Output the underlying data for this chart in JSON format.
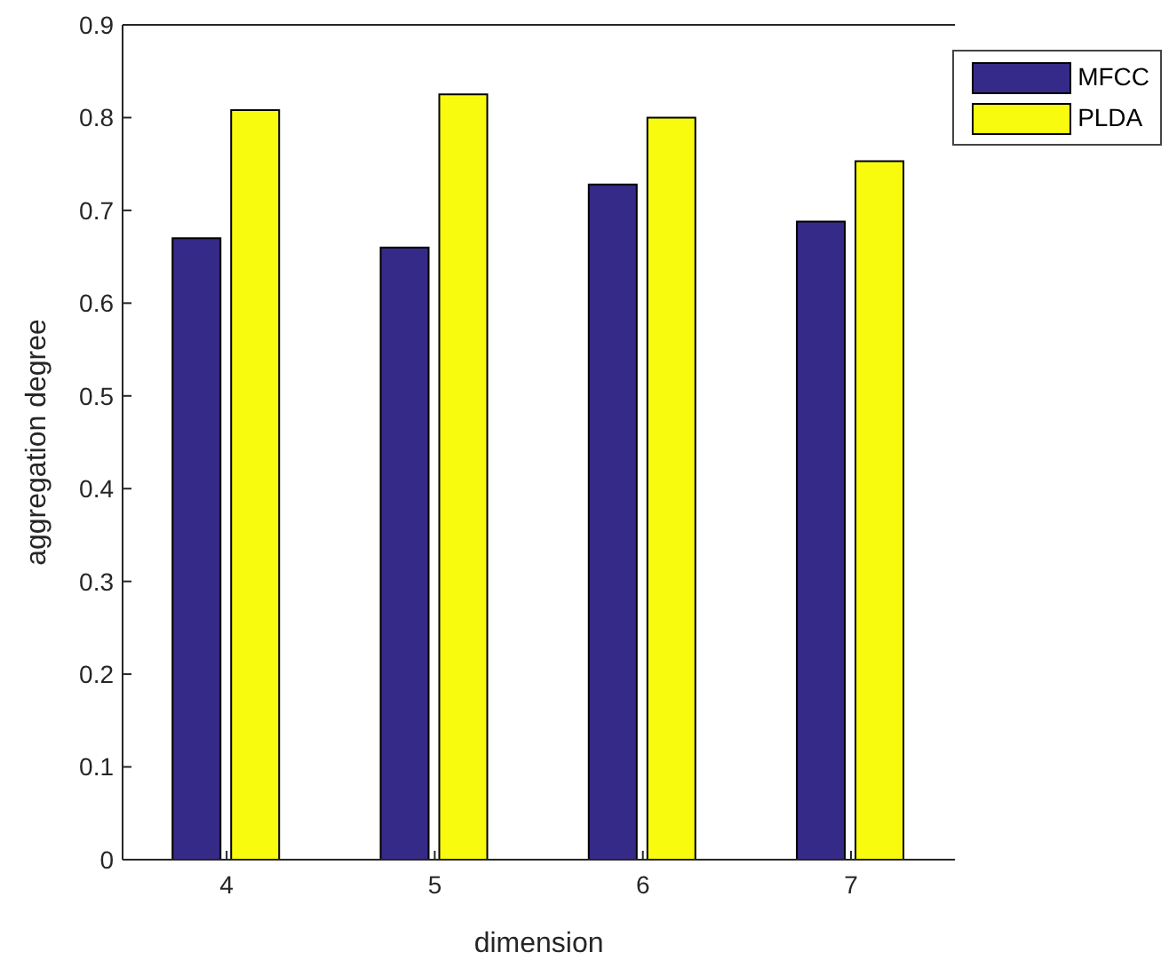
{
  "chart_data": {
    "type": "bar",
    "xlabel": "dimension",
    "ylabel": "aggregation degree",
    "categories": [
      "4",
      "5",
      "6",
      "7"
    ],
    "series": [
      {
        "name": "MFCC",
        "color": "#352a87",
        "values": [
          0.67,
          0.66,
          0.728,
          0.688
        ]
      },
      {
        "name": "PLDA",
        "color": "#f9fb0e",
        "values": [
          0.808,
          0.825,
          0.8,
          0.753
        ]
      }
    ],
    "ylim": [
      0,
      0.9
    ],
    "yticks": [
      0,
      0.1,
      0.2,
      0.3,
      0.4,
      0.5,
      0.6,
      0.7,
      0.8,
      0.9
    ],
    "grid": false,
    "legend": "top right"
  }
}
